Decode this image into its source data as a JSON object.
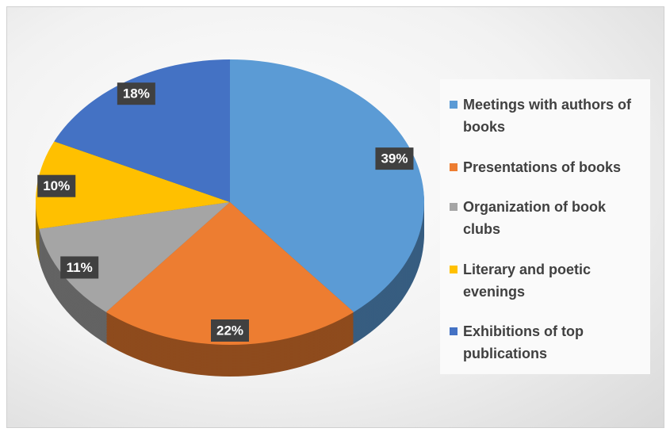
{
  "chart_data": {
    "type": "pie",
    "categories": [
      "Meetings with authors of books",
      "Presentations of books",
      "Organization of book clubs",
      "Literary and poetic evenings",
      "Exhibitions of top publications"
    ],
    "values": [
      39,
      22,
      11,
      10,
      18
    ],
    "value_labels": [
      "39%",
      "22%",
      "11%",
      "10%",
      "18%"
    ],
    "colors": [
      "#5b9bd5",
      "#ed7d31",
      "#a5a5a5",
      "#ffc000",
      "#4472c4"
    ],
    "legend": "right"
  }
}
